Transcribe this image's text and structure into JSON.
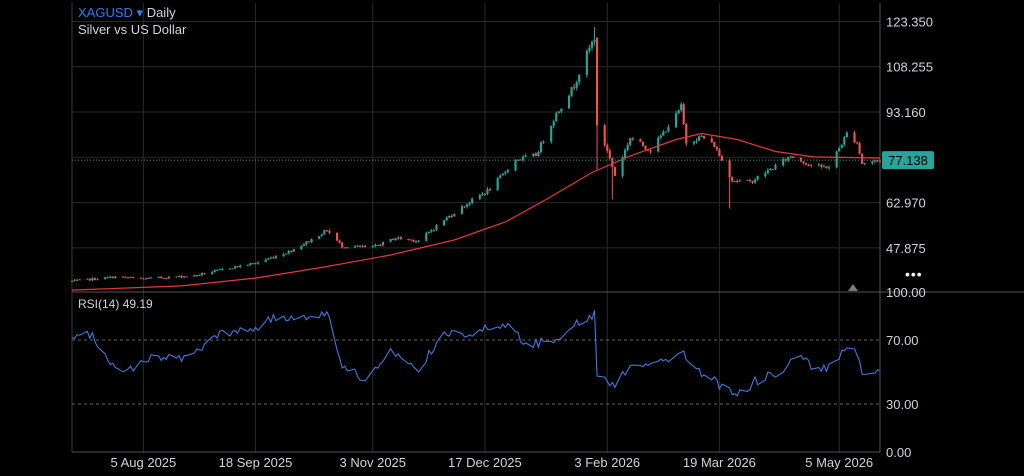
{
  "header": {
    "symbol": "XAGUSD",
    "dropdown_glyph": "▾",
    "timeframe": "Daily",
    "subtitle": "Silver vs US Dollar"
  },
  "rsi": {
    "label": "RSI(14)",
    "value": "49.19"
  },
  "current_price_label": "77.138",
  "more_icon": "•••",
  "colors": {
    "up": "#26a69a",
    "down": "#ef5350",
    "ma": "#e53935",
    "rsi_line": "#3d7be0",
    "price_line": "#26a69a",
    "grid": "#2a2a2a"
  },
  "chart_data": [
    {
      "type": "candlestick",
      "series_name": "XAGUSD Daily",
      "x_type": "date",
      "x_ticks": [
        "2025-08-05",
        "2025-09-18",
        "2025-11-03",
        "2025-12-17",
        "2026-02-03",
        "2026-03-19",
        "2026-05-05"
      ],
      "x_tick_labels": [
        "5 Aug 2025",
        "18 Sep 2025",
        "3 Nov 2025",
        "17 Dec 2025",
        "3 Feb 2026",
        "19 Mar 2026",
        "5 May 2026"
      ],
      "x_range": [
        "2025-07-08",
        "2026-05-21"
      ],
      "y_ticks": [
        123.35,
        108.255,
        93.16,
        78.065,
        62.97,
        47.875
      ],
      "y_tick_labels": [
        "123.350",
        "108.255",
        "93.160",
        "",
        "62.970",
        "47.875"
      ],
      "y_range": [
        33.5,
        129.5
      ],
      "last_price": 77.138,
      "grid": true,
      "close_anchors": [
        [
          "2025-07-08",
          36.8
        ],
        [
          "2025-07-25",
          38.2
        ],
        [
          "2025-08-05",
          37.6
        ],
        [
          "2025-08-25",
          38.6
        ],
        [
          "2025-09-08",
          41.2
        ],
        [
          "2025-09-18",
          42.8
        ],
        [
          "2025-10-01",
          46.6
        ],
        [
          "2025-10-10",
          50.6
        ],
        [
          "2025-10-16",
          53.8
        ],
        [
          "2025-10-22",
          48.4
        ],
        [
          "2025-11-03",
          48.1
        ],
        [
          "2025-11-12",
          51.2
        ],
        [
          "2025-11-21",
          50.2
        ],
        [
          "2025-12-01",
          57.2
        ],
        [
          "2025-12-10",
          62.6
        ],
        [
          "2025-12-19",
          67.5
        ],
        [
          "2025-12-29",
          77.2
        ],
        [
          "2026-01-06",
          78.8
        ],
        [
          "2026-01-14",
          92.5
        ],
        [
          "2026-01-21",
          102.0
        ],
        [
          "2026-01-26",
          112.5
        ],
        [
          "2026-01-29",
          118.0
        ],
        [
          "2026-01-30",
          88.0
        ],
        [
          "2026-02-03",
          80.5
        ],
        [
          "2026-02-06",
          72.0
        ],
        [
          "2026-02-12",
          84.6
        ],
        [
          "2026-02-20",
          80.5
        ],
        [
          "2026-03-02",
          92.0
        ],
        [
          "2026-03-04",
          95.0
        ],
        [
          "2026-03-06",
          83.0
        ],
        [
          "2026-03-12",
          85.0
        ],
        [
          "2026-03-17",
          82.0
        ],
        [
          "2026-03-24",
          70.5
        ],
        [
          "2026-03-31",
          69.8
        ],
        [
          "2026-04-08",
          74.0
        ],
        [
          "2026-04-16",
          78.5
        ],
        [
          "2026-04-25",
          75.0
        ],
        [
          "2026-05-01",
          74.8
        ],
        [
          "2026-05-08",
          86.0
        ],
        [
          "2026-05-12",
          83.0
        ],
        [
          "2026-05-14",
          76.0
        ],
        [
          "2026-05-21",
          77.138
        ]
      ],
      "moving_average": [
        [
          "2025-07-08",
          33.8
        ],
        [
          "2025-08-20",
          35.2
        ],
        [
          "2025-09-18",
          37.8
        ],
        [
          "2025-10-15",
          41.5
        ],
        [
          "2025-11-10",
          45.5
        ],
        [
          "2025-12-05",
          50.5
        ],
        [
          "2025-12-25",
          56.5
        ],
        [
          "2026-01-10",
          64.0
        ],
        [
          "2026-01-28",
          73.0
        ],
        [
          "2026-02-12",
          78.5
        ],
        [
          "2026-03-02",
          84.0
        ],
        [
          "2026-03-12",
          86.0
        ],
        [
          "2026-03-26",
          84.0
        ],
        [
          "2026-04-10",
          80.0
        ],
        [
          "2026-04-25",
          78.2
        ],
        [
          "2026-05-21",
          77.8
        ]
      ]
    },
    {
      "type": "line",
      "series_name": "RSI(14)",
      "x_type": "date",
      "y_ticks": [
        100,
        70,
        30,
        0
      ],
      "y_tick_labels": [
        "100.00",
        "70.00",
        "30.00",
        "0.00"
      ],
      "y_range": [
        0,
        100
      ],
      "reference_lines": [
        70,
        30
      ],
      "anchors": [
        [
          "2025-07-08",
          70.0
        ],
        [
          "2025-07-15",
          74.0
        ],
        [
          "2025-07-27",
          48.0
        ],
        [
          "2025-08-08",
          60.0
        ],
        [
          "2025-08-22",
          58.0
        ],
        [
          "2025-09-03",
          73.0
        ],
        [
          "2025-09-15",
          76.0
        ],
        [
          "2025-09-25",
          83.0
        ],
        [
          "2025-10-10",
          86.0
        ],
        [
          "2025-10-17",
          86.0
        ],
        [
          "2025-10-22",
          52.0
        ],
        [
          "2025-11-01",
          46.0
        ],
        [
          "2025-11-10",
          62.0
        ],
        [
          "2025-11-20",
          51.0
        ],
        [
          "2025-12-02",
          74.0
        ],
        [
          "2025-12-12",
          75.0
        ],
        [
          "2025-12-28",
          80.0
        ],
        [
          "2026-01-02",
          66.0
        ],
        [
          "2026-01-12",
          70.0
        ],
        [
          "2026-01-20",
          78.0
        ],
        [
          "2026-01-29",
          86.0
        ],
        [
          "2026-01-30",
          48.0
        ],
        [
          "2026-02-06",
          42.0
        ],
        [
          "2026-02-12",
          55.0
        ],
        [
          "2026-02-25",
          56.0
        ],
        [
          "2026-03-04",
          63.0
        ],
        [
          "2026-03-10",
          52.0
        ],
        [
          "2026-03-19",
          42.0
        ],
        [
          "2026-03-26",
          35.0
        ],
        [
          "2026-04-02",
          44.0
        ],
        [
          "2026-04-12",
          51.0
        ],
        [
          "2026-04-20",
          60.0
        ],
        [
          "2026-04-26",
          50.0
        ],
        [
          "2026-05-03",
          55.0
        ],
        [
          "2026-05-10",
          69.0
        ],
        [
          "2026-05-14",
          49.0
        ],
        [
          "2026-05-21",
          49.19
        ]
      ]
    }
  ]
}
